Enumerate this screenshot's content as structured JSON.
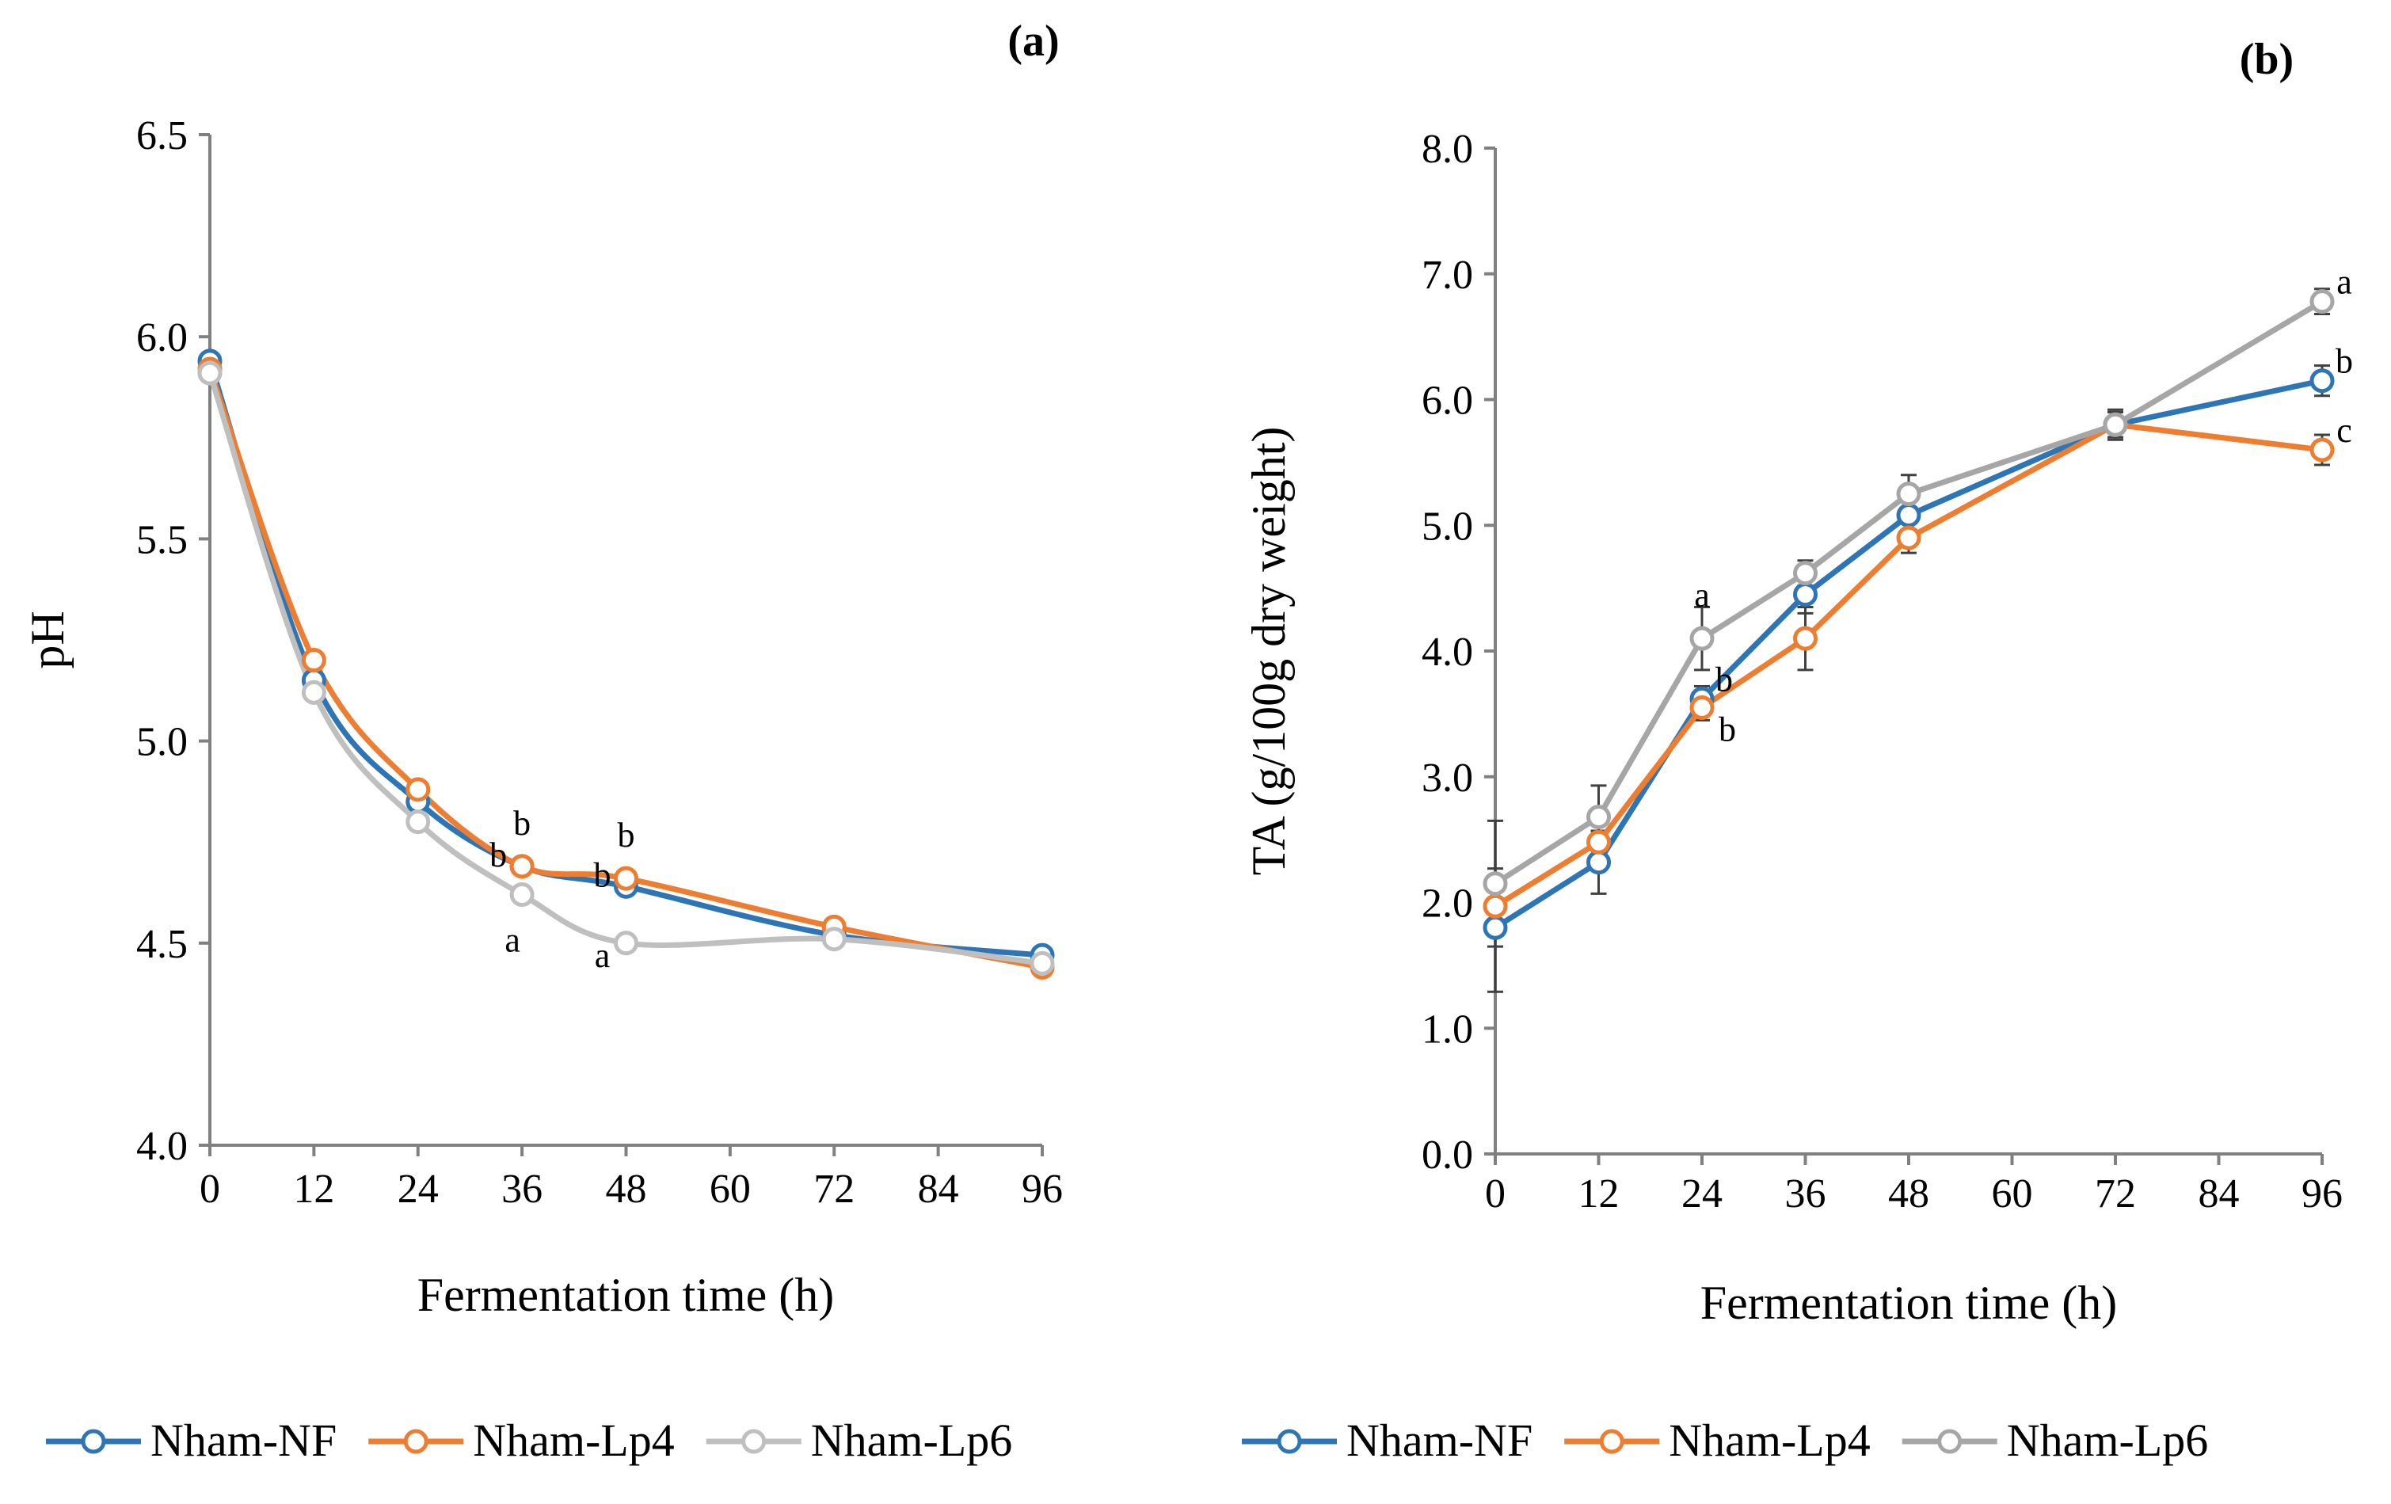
{
  "chart_data": [
    {
      "panel": "(a)",
      "type": "line",
      "xlabel": "Fermentation time (h)",
      "ylabel": "pH",
      "xlim": [
        0,
        96
      ],
      "ylim": [
        4.0,
        6.5
      ],
      "xticks": [
        0,
        12,
        24,
        36,
        48,
        60,
        72,
        84,
        96
      ],
      "yticks": [
        "4.0",
        "4.5",
        "5.0",
        "5.5",
        "6.0",
        "6.5"
      ],
      "legend_position": "bottom",
      "series": [
        {
          "name": "Nham-NF",
          "color": "#2E75B6",
          "x": [
            0,
            12,
            24,
            36,
            48,
            72,
            96
          ],
          "values": [
            5.94,
            5.15,
            4.85,
            4.69,
            4.64,
            4.52,
            4.47
          ]
        },
        {
          "name": "Nham-Lp4",
          "color": "#ED7D31",
          "x": [
            0,
            12,
            24,
            36,
            48,
            72,
            96
          ],
          "values": [
            5.92,
            5.2,
            4.88,
            4.69,
            4.66,
            4.54,
            4.44
          ]
        },
        {
          "name": "Nham-Lp6",
          "color": "#BFBFBF",
          "x": [
            0,
            12,
            24,
            36,
            48,
            72,
            96
          ],
          "values": [
            5.91,
            5.12,
            4.8,
            4.62,
            4.5,
            4.51,
            4.45
          ]
        }
      ],
      "annotations": [
        {
          "text": "b",
          "x": 36,
          "y": 4.69,
          "pos": "above"
        },
        {
          "text": "b",
          "x": 36,
          "y": 4.69,
          "pos": "left"
        },
        {
          "text": "a",
          "x": 36,
          "y": 4.62,
          "pos": "below"
        },
        {
          "text": "b",
          "x": 48,
          "y": 4.66,
          "pos": "above"
        },
        {
          "text": "b",
          "x": 48,
          "y": 4.64,
          "pos": "left"
        },
        {
          "text": "a",
          "x": 48,
          "y": 4.5,
          "pos": "below-left"
        }
      ]
    },
    {
      "panel": "(b)",
      "type": "line",
      "xlabel": "Fermentation time (h)",
      "ylabel": "TA (g/100g  dry weight)",
      "xlim": [
        0,
        96
      ],
      "ylim": [
        0.0,
        8.0
      ],
      "xticks": [
        0,
        12,
        24,
        36,
        48,
        60,
        72,
        84,
        96
      ],
      "yticks": [
        "0.0",
        "1.0",
        "2.0",
        "3.0",
        "4.0",
        "5.0",
        "6.0",
        "7.0",
        "8.0"
      ],
      "legend_position": "bottom",
      "series": [
        {
          "name": "Nham-NF",
          "color": "#2E75B6",
          "x": [
            0,
            12,
            24,
            36,
            48,
            72,
            96
          ],
          "values": [
            1.8,
            2.32,
            3.62,
            4.45,
            5.08,
            5.8,
            6.15
          ],
          "errors": [
            0.15,
            0.25,
            0.1,
            0.15,
            0.12,
            0.1,
            0.12
          ]
        },
        {
          "name": "Nham-Lp4",
          "color": "#ED7D31",
          "x": [
            0,
            12,
            24,
            36,
            48,
            72,
            96
          ],
          "values": [
            1.97,
            2.48,
            3.55,
            4.1,
            4.9,
            5.8,
            5.6
          ],
          "errors": [
            0.68,
            0.2,
            0.1,
            0.25,
            0.12,
            0.1,
            0.12
          ]
        },
        {
          "name": "Nham-Lp6",
          "color": "#A6A6A6",
          "x": [
            0,
            12,
            24,
            36,
            48,
            72,
            96
          ],
          "values": [
            2.15,
            2.68,
            4.1,
            4.62,
            5.25,
            5.8,
            6.78
          ],
          "errors": [
            0.12,
            0.25,
            0.25,
            0.1,
            0.15,
            0.12,
            0.1
          ]
        }
      ],
      "annotations": [
        {
          "text": "a",
          "x": 24,
          "y": 4.1,
          "pos": "above"
        },
        {
          "text": "b",
          "x": 24,
          "y": 3.62,
          "pos": "upper-right"
        },
        {
          "text": "b",
          "x": 24,
          "y": 3.55,
          "pos": "lower-right"
        },
        {
          "text": "a",
          "x": 96,
          "y": 6.78,
          "pos": "upper-right"
        },
        {
          "text": "b",
          "x": 96,
          "y": 6.15,
          "pos": "upper-right"
        },
        {
          "text": "c",
          "x": 96,
          "y": 5.6,
          "pos": "upper-right"
        }
      ]
    }
  ]
}
